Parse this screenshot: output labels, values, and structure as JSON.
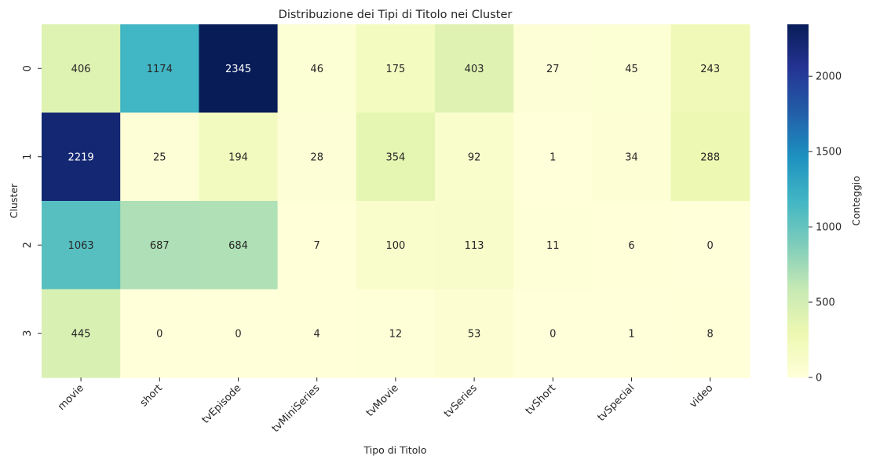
{
  "chart_data": {
    "type": "heatmap",
    "title": "Distribuzione dei Tipi di Titolo nei Cluster",
    "xlabel": "Tipo di Titolo",
    "ylabel": "Cluster",
    "x_categories": [
      "movie",
      "short",
      "tvEpisode",
      "tvMiniSeries",
      "tvMovie",
      "tvSeries",
      "tvShort",
      "tvSpecial",
      "video"
    ],
    "y_categories": [
      "0",
      "1",
      "2",
      "3"
    ],
    "values": [
      [
        406,
        1174,
        2345,
        46,
        175,
        403,
        27,
        45,
        243
      ],
      [
        2219,
        25,
        194,
        28,
        354,
        92,
        1,
        34,
        288
      ],
      [
        1063,
        687,
        684,
        7,
        100,
        113,
        11,
        6,
        0
      ],
      [
        445,
        0,
        0,
        4,
        12,
        53,
        0,
        1,
        8
      ]
    ],
    "colorbar": {
      "label": "Conteggio",
      "ticks": [
        0,
        500,
        1000,
        1500,
        2000
      ],
      "range": [
        0,
        2345
      ],
      "colormap": "YlGnBu"
    }
  }
}
